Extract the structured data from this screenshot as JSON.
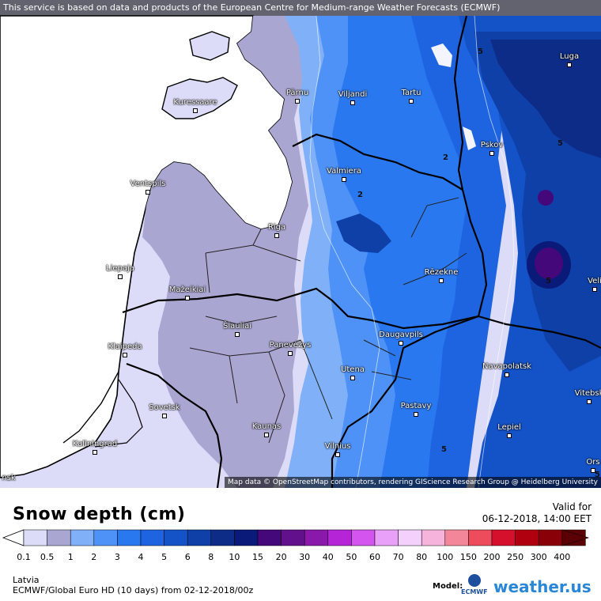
{
  "banner": "This service is based on data and products of the European Centre for Medium-range Weather Forecasts (ECMWF)",
  "attribution": "Map data © OpenStreetMap contributors, rendering GIScience Research Group @ Heidelberg University",
  "title": "Snow depth (cm)",
  "valid_label": "Valid for",
  "valid_time": "06-12-2018, 14:00 EET",
  "region": "Latvia",
  "model_run": "ECMWF/Global Euro HD (10 days) from 02-12-2018/00z",
  "model_label": "Model:",
  "model_logo_text": "ECMWF",
  "brand": {
    "main": "weather.",
    "accent": "us"
  },
  "legend": {
    "ticks": [
      "0.1",
      "0.5",
      "1",
      "2",
      "3",
      "4",
      "5",
      "6",
      "8",
      "10",
      "15",
      "20",
      "30",
      "40",
      "50",
      "60",
      "70",
      "80",
      "100",
      "150",
      "200",
      "250",
      "300",
      "400"
    ],
    "colors": [
      "#dcdcf8",
      "#aaa6d2",
      "#7fb0f8",
      "#4e92f8",
      "#2a78f0",
      "#1e64e0",
      "#1452c8",
      "#0f40a8",
      "#0c2c88",
      "#0a1a78",
      "#44087a",
      "#62108c",
      "#8a18aa",
      "#b624d8",
      "#d454f0",
      "#e8a0f8",
      "#f4d0fc",
      "#f6b4dc",
      "#f4869a",
      "#ec4c5c",
      "#d4102c",
      "#b00010",
      "#8a0008",
      "#5a0004"
    ]
  },
  "contour_labels": [
    "5",
    "5",
    "2",
    "2",
    "5",
    "5",
    "5"
  ],
  "cities": [
    {
      "name": "Pärnu"
    },
    {
      "name": "Viljandi"
    },
    {
      "name": "Tartu"
    },
    {
      "name": "Luga"
    },
    {
      "name": "Kuressaare"
    },
    {
      "name": "Pskov"
    },
    {
      "name": "Valmiera"
    },
    {
      "name": "Ventspils"
    },
    {
      "name": "Riga"
    },
    {
      "name": "Liepaja"
    },
    {
      "name": "Rēzekne"
    },
    {
      "name": "Mažeikiai"
    },
    {
      "name": "Šiauliai"
    },
    {
      "name": "Klaipeda"
    },
    {
      "name": "Panevėžys"
    },
    {
      "name": "Daugavpils"
    },
    {
      "name": "Velí"
    },
    {
      "name": "Utena"
    },
    {
      "name": "Navapolatsk"
    },
    {
      "name": "Vitebsk"
    },
    {
      "name": "Sovetsk"
    },
    {
      "name": "Pastavy"
    },
    {
      "name": "Kaunas"
    },
    {
      "name": "Lepiel"
    },
    {
      "name": "Kaliningrad"
    },
    {
      "name": "Vilnius"
    },
    {
      "name": "Ors"
    },
    {
      "name": "nsk"
    }
  ]
}
